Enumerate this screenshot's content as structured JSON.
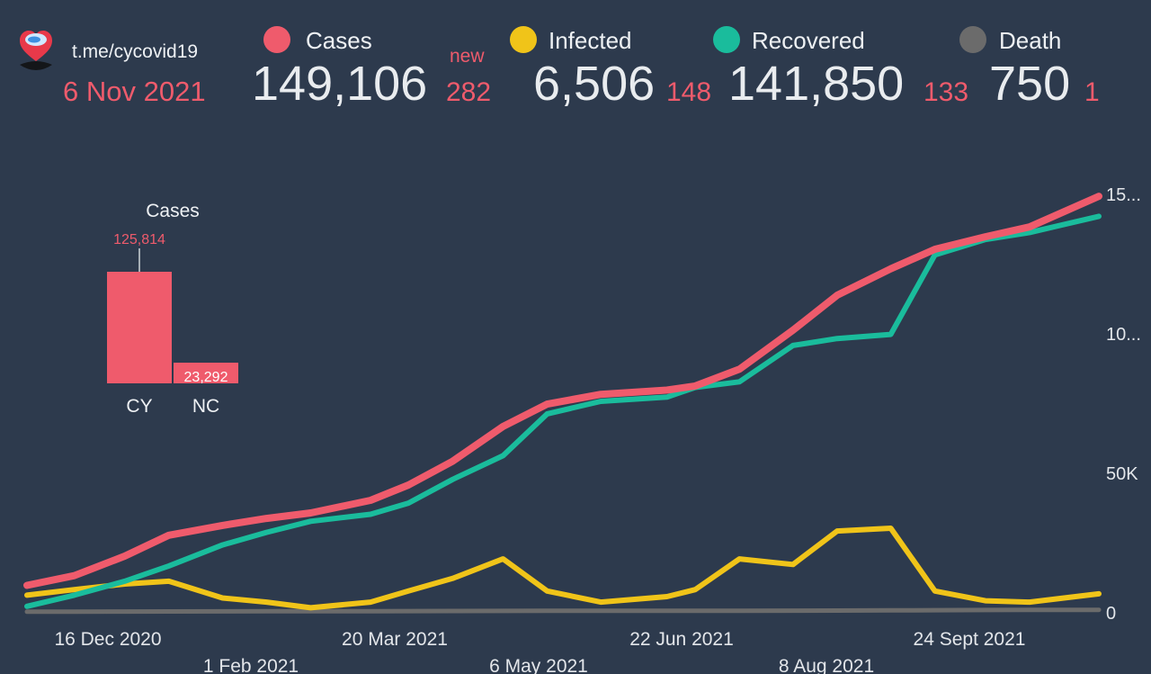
{
  "header": {
    "link": "t.me/cycovid19",
    "date": "6 Nov 2021",
    "new_label": "new"
  },
  "stats": [
    {
      "label": "Cases",
      "color": "#ef5b6c",
      "value": "149,106",
      "delta": "282"
    },
    {
      "label": "Infected",
      "color": "#f0c419",
      "value": "6,506",
      "delta": "148"
    },
    {
      "label": "Recovered",
      "color": "#1abc9c",
      "value": "141,850",
      "delta": "133"
    },
    {
      "label": "Death",
      "color": "#6b6b6b",
      "value": "750",
      "delta": "1"
    }
  ],
  "chart_data": [
    {
      "type": "bar",
      "title": "Cases",
      "categories": [
        "CY",
        "NC"
      ],
      "values": [
        125814,
        23292
      ],
      "value_labels": [
        "125,814",
        "23,292"
      ],
      "color": "#ef5b6c"
    },
    {
      "type": "line",
      "x_ticks": [
        "16 Dec 2020",
        "1 Feb 2021",
        "20 Mar 2021",
        "6 May 2021",
        "22 Jun 2021",
        "8 Aug 2021",
        "24 Sept 2021"
      ],
      "y_ticks": [
        "0",
        "50K",
        "10...",
        "15..."
      ],
      "ylim": [
        0,
        150000
      ],
      "x": [
        "2020-12-01",
        "2020-12-16",
        "2021-01-01",
        "2021-01-15",
        "2021-02-01",
        "2021-02-15",
        "2021-03-01",
        "2021-03-20",
        "2021-04-01",
        "2021-04-15",
        "2021-05-01",
        "2021-05-15",
        "2021-06-01",
        "2021-06-22",
        "2021-07-01",
        "2021-07-15",
        "2021-08-01",
        "2021-08-15",
        "2021-09-01",
        "2021-09-15",
        "2021-10-01",
        "2021-10-15",
        "2021-11-06"
      ],
      "series": [
        {
          "name": "Cases",
          "color": "#ef5b6c",
          "values": [
            9500,
            13000,
            20000,
            27500,
            31000,
            33500,
            35500,
            40000,
            45500,
            54000,
            66500,
            74500,
            78000,
            79500,
            81000,
            87000,
            101000,
            113500,
            123000,
            130000,
            134500,
            138000,
            149000
          ]
        },
        {
          "name": "Recovered",
          "color": "#1abc9c",
          "values": [
            2000,
            6000,
            11000,
            16500,
            24000,
            28500,
            32500,
            35000,
            39000,
            47500,
            56000,
            71000,
            75500,
            77000,
            80500,
            82500,
            95500,
            98000,
            99500,
            128000,
            133500,
            136000,
            141800
          ]
        },
        {
          "name": "Infected",
          "color": "#f0c419",
          "values": [
            6000,
            8000,
            10000,
            11000,
            5000,
            3500,
            1500,
            3500,
            7500,
            12000,
            19000,
            7500,
            3500,
            5500,
            8000,
            19000,
            17000,
            29000,
            30000,
            7500,
            4000,
            3500,
            6500
          ]
        },
        {
          "name": "Death",
          "color": "#6b6b6b",
          "values": [
            60,
            90,
            120,
            150,
            200,
            220,
            240,
            260,
            290,
            320,
            360,
            380,
            390,
            390,
            400,
            410,
            450,
            500,
            560,
            620,
            680,
            720,
            750
          ]
        }
      ]
    }
  ]
}
